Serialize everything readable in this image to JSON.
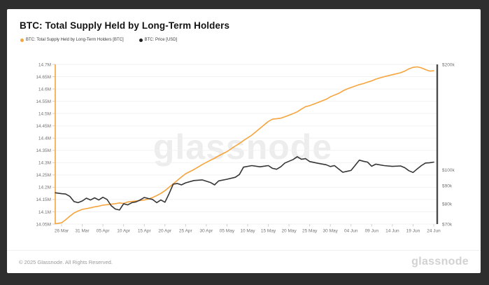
{
  "frame_color": "#2e2e2e",
  "header": {
    "title": "BTC: Total Supply Held by Long-Term Holders"
  },
  "legend": [
    {
      "label": "BTC: Total Supply Held by Long-Term Holders [BTC]",
      "color": "#f7a43c"
    },
    {
      "label": "BTC: Price [USD]",
      "color": "#1f1f1f"
    }
  ],
  "watermark": "glassnode",
  "footer": {
    "copyright": "© 2025 Glassnode. All Rights Reserved.",
    "logo": "glassnode"
  },
  "chart_data": {
    "type": "line",
    "title": "BTC: Total Supply Held by Long-Term Holders",
    "grid": true,
    "x_tick_labels": [
      "26 Mar",
      "31 Mar",
      "05 Apr",
      "10 Apr",
      "15 Apr",
      "20 Apr",
      "25 Apr",
      "30 Apr",
      "05 May",
      "10 May",
      "15 May",
      "20 May",
      "25 May",
      "30 May",
      "04 Jun",
      "09 Jun",
      "14 Jun",
      "19 Jun",
      "24 Jun"
    ],
    "x_domain_days": [
      0,
      90
    ],
    "left_axis": {
      "title": "Supply (BTC)",
      "scale": "linear",
      "min": 14.05,
      "max": 14.7,
      "tick_labels": [
        "14.7M",
        "14.65M",
        "14.6M",
        "14.55M",
        "14.5M",
        "14.45M",
        "14.4M",
        "14.35M",
        "14.3M",
        "14.25M",
        "14.2M",
        "14.15M",
        "14.1M",
        "14.05M"
      ],
      "axis_color": "#f7a43c",
      "label_color": "#737373"
    },
    "right_axis": {
      "title": "Price (USD)",
      "scale": "log",
      "min": 70,
      "max": 200,
      "tick_labels": [
        "$200k",
        "$100k",
        "$90k",
        "$80k",
        "$70k"
      ],
      "tick_values": [
        200,
        100,
        90,
        80,
        70
      ],
      "axis_color": "#4a4a4a",
      "label_color": "#737373"
    },
    "series": [
      {
        "name": "BTC: Total Supply Held by Long-Term Holders [BTC]",
        "axis": "left",
        "color": "#f7a43c",
        "unit": "M BTC",
        "points": [
          [
            -1.5,
            14.051
          ],
          [
            0,
            14.055
          ],
          [
            1,
            14.068
          ],
          [
            2,
            14.082
          ],
          [
            3,
            14.095
          ],
          [
            4,
            14.103
          ],
          [
            5,
            14.11
          ],
          [
            6,
            14.113
          ],
          [
            7,
            14.116
          ],
          [
            8,
            14.12
          ],
          [
            9,
            14.123
          ],
          [
            10,
            14.127
          ],
          [
            11,
            14.129
          ],
          [
            12,
            14.131
          ],
          [
            13,
            14.133
          ],
          [
            14,
            14.136
          ],
          [
            15,
            14.134
          ],
          [
            16,
            14.14
          ],
          [
            17,
            14.142
          ],
          [
            18,
            14.144
          ],
          [
            19,
            14.146
          ],
          [
            20,
            14.148
          ],
          [
            21,
            14.152
          ],
          [
            22,
            14.158
          ],
          [
            23,
            14.166
          ],
          [
            24,
            14.175
          ],
          [
            25,
            14.186
          ],
          [
            26,
            14.2
          ],
          [
            27,
            14.214
          ],
          [
            28,
            14.228
          ],
          [
            29,
            14.242
          ],
          [
            30,
            14.255
          ],
          [
            32,
            14.272
          ],
          [
            34,
            14.292
          ],
          [
            36,
            14.31
          ],
          [
            37,
            14.318
          ],
          [
            38,
            14.328
          ],
          [
            40,
            14.345
          ],
          [
            42,
            14.368
          ],
          [
            43,
            14.378
          ],
          [
            44,
            14.39
          ],
          [
            46,
            14.412
          ],
          [
            48,
            14.44
          ],
          [
            50,
            14.468
          ],
          [
            51,
            14.477
          ],
          [
            53,
            14.481
          ],
          [
            54,
            14.487
          ],
          [
            56,
            14.5
          ],
          [
            57,
            14.507
          ],
          [
            58,
            14.518
          ],
          [
            59,
            14.528
          ],
          [
            60,
            14.532
          ],
          [
            62,
            14.545
          ],
          [
            64,
            14.558
          ],
          [
            65,
            14.568
          ],
          [
            66,
            14.575
          ],
          [
            67,
            14.582
          ],
          [
            68,
            14.592
          ],
          [
            69,
            14.6
          ],
          [
            70,
            14.606
          ],
          [
            71,
            14.612
          ],
          [
            72,
            14.618
          ],
          [
            73,
            14.622
          ],
          [
            74,
            14.628
          ],
          [
            75,
            14.633
          ],
          [
            76,
            14.64
          ],
          [
            78,
            14.65
          ],
          [
            80,
            14.658
          ],
          [
            82,
            14.666
          ],
          [
            83,
            14.673
          ],
          [
            84,
            14.682
          ],
          [
            85,
            14.688
          ],
          [
            86,
            14.69
          ],
          [
            87,
            14.686
          ],
          [
            88,
            14.679
          ],
          [
            89,
            14.673
          ],
          [
            90,
            14.674
          ]
        ]
      },
      {
        "name": "BTC: Price [USD]",
        "axis": "right",
        "color": "#363636",
        "unit": "k USD",
        "points": [
          [
            -1.5,
            86.0
          ],
          [
            0,
            85.5
          ],
          [
            1,
            85.3
          ],
          [
            2,
            84.0
          ],
          [
            3,
            81.2
          ],
          [
            4,
            80.6
          ],
          [
            5,
            81.5
          ],
          [
            6,
            83.0
          ],
          [
            7,
            82.0
          ],
          [
            8,
            83.2
          ],
          [
            9,
            82.0
          ],
          [
            10,
            83.5
          ],
          [
            11,
            82.3
          ],
          [
            12,
            79.0
          ],
          [
            13,
            77.3
          ],
          [
            14,
            76.8
          ],
          [
            15,
            80.0
          ],
          [
            16,
            79.4
          ],
          [
            17,
            80.6
          ],
          [
            18,
            81.0
          ],
          [
            19,
            82.0
          ],
          [
            20,
            83.4
          ],
          [
            21,
            82.8
          ],
          [
            22,
            82.3
          ],
          [
            23,
            80.6
          ],
          [
            24,
            82.0
          ],
          [
            25,
            80.8
          ],
          [
            26,
            85.5
          ],
          [
            27,
            91.0
          ],
          [
            28,
            91.4
          ],
          [
            29,
            90.6
          ],
          [
            30,
            91.8
          ],
          [
            32,
            93.2
          ],
          [
            34,
            93.6
          ],
          [
            36,
            92.0
          ],
          [
            37,
            90.6
          ],
          [
            38,
            93.0
          ],
          [
            40,
            94.0
          ],
          [
            42,
            95.2
          ],
          [
            43,
            97.0
          ],
          [
            44,
            101.8
          ],
          [
            46,
            102.8
          ],
          [
            48,
            102.0
          ],
          [
            50,
            102.8
          ],
          [
            51,
            101.0
          ],
          [
            52,
            100.4
          ],
          [
            53,
            102.0
          ],
          [
            54,
            104.6
          ],
          [
            56,
            107.0
          ],
          [
            57,
            109.0
          ],
          [
            58,
            107.2
          ],
          [
            59,
            107.6
          ],
          [
            60,
            105.6
          ],
          [
            62,
            104.4
          ],
          [
            64,
            103.4
          ],
          [
            65,
            102.2
          ],
          [
            66,
            102.8
          ],
          [
            67,
            100.6
          ],
          [
            68,
            98.4
          ],
          [
            69,
            99.0
          ],
          [
            70,
            99.6
          ],
          [
            71,
            103.0
          ],
          [
            72,
            106.6
          ],
          [
            73,
            105.8
          ],
          [
            74,
            105.2
          ],
          [
            75,
            102.4
          ],
          [
            76,
            103.8
          ],
          [
            78,
            102.8
          ],
          [
            80,
            102.3
          ],
          [
            82,
            102.6
          ],
          [
            83,
            101.4
          ],
          [
            84,
            99.4
          ],
          [
            85,
            98.3
          ],
          [
            86,
            100.6
          ],
          [
            87,
            102.8
          ],
          [
            88,
            104.6
          ],
          [
            89,
            104.8
          ],
          [
            90,
            105.2
          ]
        ]
      }
    ]
  }
}
